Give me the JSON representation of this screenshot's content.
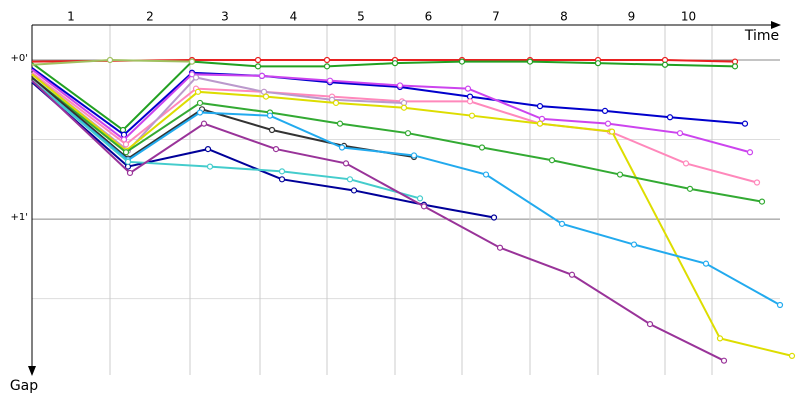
{
  "chart_data": {
    "type": "line",
    "x_label": "Time",
    "y_label": "Gap",
    "xlim": [
      0,
      748
    ],
    "ylim": [
      -0.22,
      1.98
    ],
    "yticks": [
      {
        "value": 0,
        "label": "+0'"
      },
      {
        "value": 1,
        "label": "+1'"
      }
    ],
    "minor_yticks": [
      0.5,
      1.5
    ],
    "laps": [
      "1",
      "2",
      "3",
      "4",
      "5",
      "6",
      "7",
      "8",
      "9",
      "10"
    ],
    "lap_lines": [
      78,
      158,
      228,
      295,
      363,
      430,
      498,
      566,
      633,
      680
    ],
    "grid": true,
    "series": [
      {
        "color": "#e82020",
        "x": [
          0,
          160,
          226,
          295,
          363,
          430,
          498,
          566,
          633,
          703
        ],
        "values": [
          0.01,
          0,
          0,
          0,
          0,
          0,
          0,
          0,
          0,
          0.01
        ]
      },
      {
        "color": "#22a022",
        "x": [
          0,
          91,
          160,
          226,
          295,
          363,
          430,
          498,
          566,
          633,
          703
        ],
        "values": [
          0.02,
          0.44,
          0.01,
          0.04,
          0.04,
          0.02,
          0.01,
          0.01,
          0.02,
          0.03,
          0.04
        ]
      },
      {
        "color": "#a0c060",
        "x": [
          0,
          78,
          160
        ],
        "values": [
          0.03,
          0,
          0.01
        ]
      },
      {
        "color": "#0000cc",
        "x": [
          0,
          92,
          160,
          230,
          298,
          368,
          438,
          508,
          573,
          638,
          713
        ],
        "values": [
          0.05,
          0.47,
          0.08,
          0.1,
          0.14,
          0.17,
          0.23,
          0.29,
          0.32,
          0.36,
          0.4
        ]
      },
      {
        "color": "#cc44ee",
        "x": [
          0,
          92,
          160,
          230,
          298,
          368,
          436,
          510,
          576,
          648,
          718
        ],
        "values": [
          0.06,
          0.5,
          0.09,
          0.1,
          0.13,
          0.16,
          0.18,
          0.37,
          0.4,
          0.46,
          0.58
        ]
      },
      {
        "color": "#ff88bb",
        "x": [
          0,
          94,
          164,
          232,
          300,
          370,
          438,
          508,
          578,
          654,
          725
        ],
        "values": [
          0.08,
          0.53,
          0.18,
          0.2,
          0.23,
          0.26,
          0.26,
          0.4,
          0.45,
          0.65,
          0.77
        ]
      },
      {
        "color": "#bb99cc",
        "x": [
          0,
          96,
          164,
          232,
          300,
          372
        ],
        "values": [
          0.09,
          0.57,
          0.11,
          0.2,
          0.25,
          0.27
        ]
      },
      {
        "color": "#dddd00",
        "x": [
          0,
          94,
          166,
          234,
          304,
          372,
          440,
          508,
          580,
          688,
          760
        ],
        "values": [
          0.09,
          0.57,
          0.2,
          0.23,
          0.27,
          0.3,
          0.35,
          0.4,
          0.45,
          1.75,
          1.86
        ]
      },
      {
        "color": "#33aa33",
        "x": [
          0,
          94,
          168,
          238,
          308,
          376,
          450,
          520,
          588,
          658,
          730
        ],
        "values": [
          0.11,
          0.58,
          0.27,
          0.33,
          0.4,
          0.46,
          0.55,
          0.63,
          0.72,
          0.81,
          0.89
        ]
      },
      {
        "color": "#333333",
        "x": [
          0,
          96,
          170,
          240,
          312,
          382
        ],
        "values": [
          0.11,
          0.62,
          0.31,
          0.44,
          0.54,
          0.61
        ]
      },
      {
        "color": "#22aaee",
        "x": [
          0,
          96,
          168,
          238,
          310,
          382,
          454,
          530,
          602,
          674,
          748
        ],
        "values": [
          0.13,
          0.63,
          0.33,
          0.35,
          0.55,
          0.6,
          0.72,
          1.03,
          1.16,
          1.28,
          1.54
        ]
      },
      {
        "color": "#000099",
        "x": [
          0,
          96,
          176,
          250,
          322,
          392,
          462
        ],
        "values": [
          0.14,
          0.67,
          0.56,
          0.75,
          0.82,
          0.91,
          0.99
        ]
      },
      {
        "color": "#44cccc",
        "x": [
          0,
          96,
          178,
          250,
          318,
          388
        ],
        "values": [
          0.13,
          0.64,
          0.67,
          0.7,
          0.75,
          0.87
        ]
      },
      {
        "color": "#993399",
        "x": [
          0,
          98,
          172,
          244,
          314,
          392,
          468,
          540,
          618,
          692
        ],
        "values": [
          0.13,
          0.71,
          0.4,
          0.56,
          0.65,
          0.92,
          1.18,
          1.35,
          1.66,
          1.89
        ]
      }
    ]
  }
}
